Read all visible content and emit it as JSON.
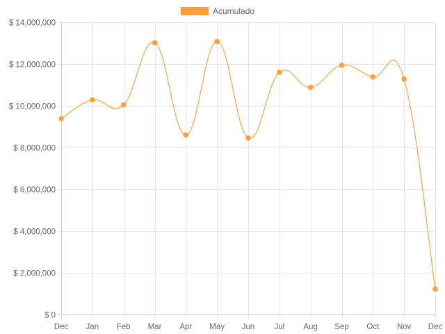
{
  "chart_data": {
    "type": "line",
    "categories": [
      "Dec",
      "Jan",
      "Feb",
      "Mar",
      "Apr",
      "May",
      "Jun",
      "Jul",
      "Aug",
      "Sep",
      "Oct",
      "Nov",
      "Dec"
    ],
    "series": [
      {
        "name": "Acumulado",
        "color": "#ff9f40",
        "values": [
          9380000,
          10280000,
          10040000,
          13020000,
          8600000,
          13080000,
          8460000,
          11600000,
          10880000,
          11940000,
          11380000,
          11280000,
          1220000
        ]
      }
    ],
    "y_ticks": [
      "$ 0",
      "$ 2,000,000",
      "$ 4,000,000",
      "$ 6,000,000",
      "$ 8,000,000",
      "$ 10,000,000",
      "$ 12,000,000",
      "$ 14,000,000"
    ],
    "ylim": [
      0,
      14000000
    ],
    "grid": true,
    "legend_position": "top"
  }
}
